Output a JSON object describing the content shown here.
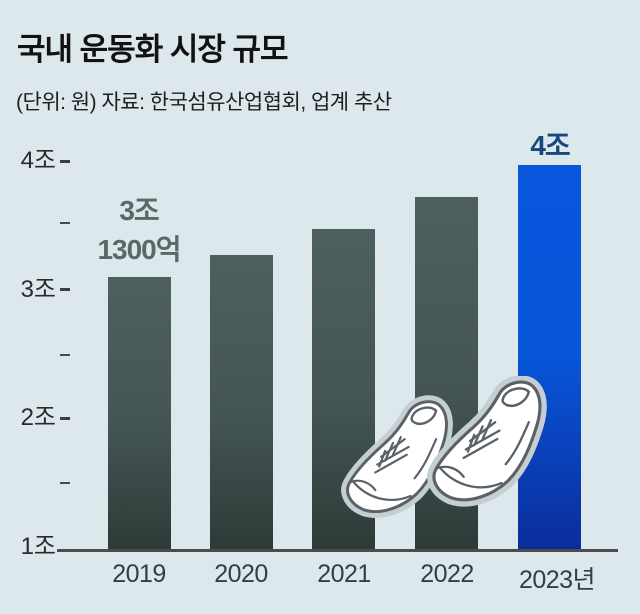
{
  "title": "국내 운동화 시장 규모",
  "subtitle": "(단위: 원) 자료: 한국섬유산업협회, 업계 추산",
  "chart_data": {
    "type": "bar",
    "title": "국내 운동화 시장 규모",
    "unit_note": "(단위: 원)",
    "source_note": "자료: 한국섬유산업협회, 업계 추산",
    "categories": [
      "2019",
      "2020",
      "2021",
      "2022",
      "2023년"
    ],
    "values": [
      3.13,
      3.3,
      3.5,
      3.75,
      4.0
    ],
    "values_unit": "조 원",
    "ylim": [
      1,
      4.3
    ],
    "y_ticks": [
      {
        "value": 4,
        "label": "4조"
      },
      {
        "value": 3,
        "label": "3조"
      },
      {
        "value": 2,
        "label": "2조"
      },
      {
        "value": 1,
        "label": "1조"
      }
    ],
    "y_minor_ticks": [
      3.5,
      2.5,
      1.5
    ],
    "grid": false,
    "legend": false,
    "annotations": [
      {
        "target": "2019",
        "text": "3조 1300억",
        "lines": [
          "3조",
          "1300억"
        ]
      },
      {
        "target": "2023년",
        "text": "4조"
      }
    ],
    "highlighted_category": "2023년"
  },
  "colors": {
    "background": "#dde8ed",
    "bar_gray_top": "#4e605e",
    "bar_gray_bottom": "#2e3a38",
    "bar_blue_top": "#0857dd",
    "bar_blue_bottom": "#0b2d9b",
    "blue_label": "#16487e",
    "gray_annotation": "#5a6965",
    "axis_text": "#2a2a2a",
    "x_axis_text": "#333e45",
    "baseline": "#4c4c4c"
  },
  "icons": {
    "sneakers": "sneakers-illustration"
  }
}
